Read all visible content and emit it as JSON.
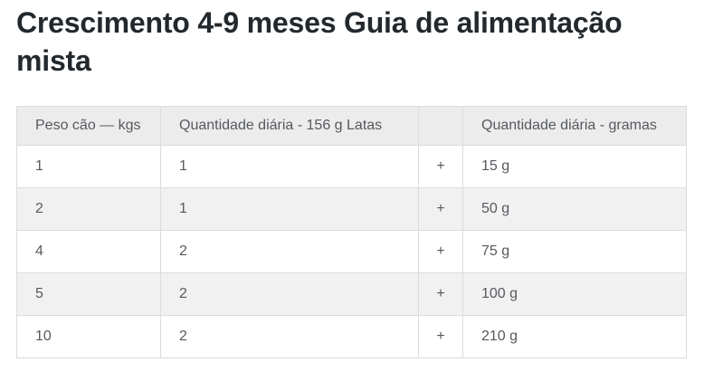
{
  "page": {
    "title": "Crescimento 4-9 meses Guia de alimentação mista"
  },
  "table": {
    "headers": {
      "weight": "Peso cão — kgs",
      "cans": "Quantidade diária - 156 g Latas",
      "spacer": "",
      "grams": "Quantidade diária - gramas"
    },
    "rows": [
      [
        "1",
        "1",
        "+",
        "15 g"
      ],
      [
        "2",
        "1",
        "+",
        "50 g"
      ],
      [
        "4",
        "2",
        "+",
        "75 g"
      ],
      [
        "5",
        "2",
        "+",
        "100 g"
      ],
      [
        "10",
        "2",
        "+",
        "210 g"
      ]
    ]
  },
  "colors": {
    "title_text": "#23282d",
    "body_text": "#55595e",
    "header_background": "#ececec",
    "stripe_background": "#f1f1f2",
    "border": "#dcdcdc",
    "page_background": "#ffffff"
  }
}
